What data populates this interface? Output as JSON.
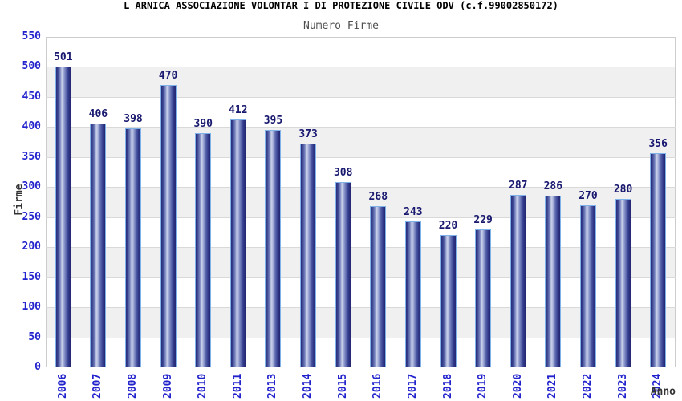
{
  "chart_data": {
    "type": "bar",
    "title": "L ARNICA ASSOCIAZIONE VOLONTAR I DI PROTEZIONE CIVILE ODV (c.f.99002850172)",
    "subtitle": "Numero Firme",
    "xlabel": "Anno",
    "ylabel": "Firme",
    "categories": [
      "2006",
      "2007",
      "2008",
      "2009",
      "2010",
      "2011",
      "2013",
      "2014",
      "2015",
      "2016",
      "2017",
      "2018",
      "2019",
      "2020",
      "2021",
      "2022",
      "2023",
      "2024"
    ],
    "values": [
      501,
      406,
      398,
      470,
      390,
      412,
      395,
      373,
      308,
      268,
      243,
      220,
      229,
      287,
      286,
      270,
      280,
      356
    ],
    "ylim": [
      0,
      550
    ],
    "ytick_step": 50,
    "grid": "horizontal gridlines with alternating gray/white bands every 50 units",
    "legend": "none",
    "bar_value_labels": "shown above each bar",
    "x_tick_rotation_deg": -90,
    "colors": {
      "background": "#ffffff",
      "bar_dark": "#23276f",
      "bar_highlight": "#c9cfe9",
      "bar_border": "#7fb2e8",
      "tick_label": "#2323cd",
      "value_label": "#191970",
      "title": "#000000",
      "subtitle": "#4d4d4d",
      "axis_name": "#333333",
      "band_gray": "#f0f0f0",
      "gridline": "#d9d9d9",
      "plot_border": "#cccccc"
    }
  }
}
